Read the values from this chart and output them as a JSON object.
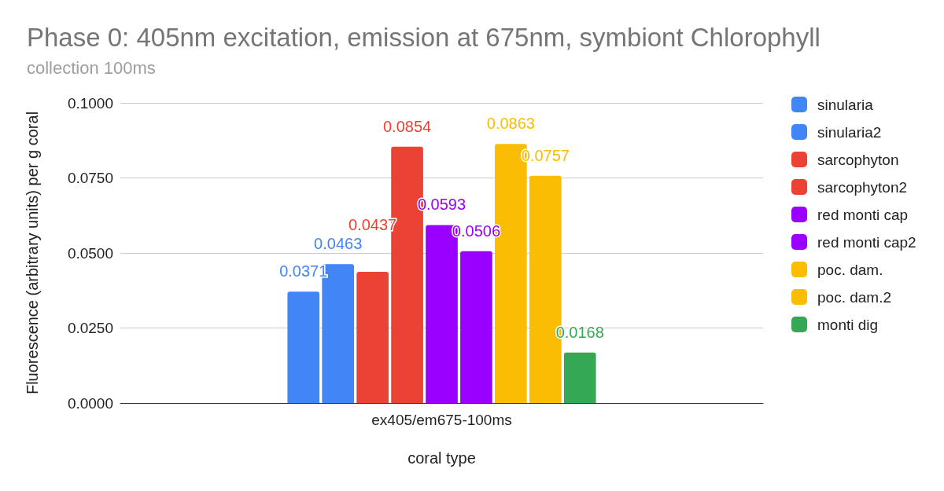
{
  "chart_data": {
    "type": "bar",
    "title": "Phase 0: 405nm excitation, emission at 675nm, symbiont Chlorophyll",
    "subtitle": "collection 100ms",
    "xlabel": "coral type",
    "ylabel": "Fluorescence (arbitrary units) per g coral",
    "categories": [
      "ex405/em675-100ms"
    ],
    "series": [
      {
        "name": "sinularia",
        "color": "#4285f4",
        "values": [
          0.0371
        ]
      },
      {
        "name": "sinularia2",
        "color": "#4285f4",
        "values": [
          0.0463
        ]
      },
      {
        "name": "sarcophyton",
        "color": "#ea4335",
        "values": [
          0.0437
        ]
      },
      {
        "name": "sarcophyton2",
        "color": "#ea4335",
        "values": [
          0.0854
        ]
      },
      {
        "name": "red monti cap",
        "color": "#9900ff",
        "values": [
          0.0593
        ]
      },
      {
        "name": "red monti cap2",
        "color": "#9900ff",
        "values": [
          0.0506
        ]
      },
      {
        "name": "poc. dam.",
        "color": "#fbbc04",
        "values": [
          0.0863
        ]
      },
      {
        "name": "poc. dam.2",
        "color": "#fbbc04",
        "values": [
          0.0757
        ]
      },
      {
        "name": "monti dig",
        "color": "#34a853",
        "values": [
          0.0168
        ]
      }
    ],
    "ylim": [
      0,
      0.1
    ],
    "yticks": [
      {
        "value": 0,
        "label": "0.0000"
      },
      {
        "value": 0.025,
        "label": "0.0250"
      },
      {
        "value": 0.05,
        "label": "0.0500"
      },
      {
        "value": 0.075,
        "label": "0.0750"
      },
      {
        "value": 0.1,
        "label": "0.1000"
      }
    ],
    "grid": "y",
    "legend": "right",
    "data_labels": true
  }
}
